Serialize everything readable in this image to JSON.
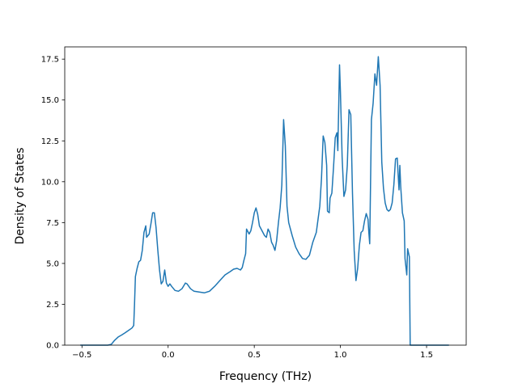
{
  "chart_data": {
    "type": "line",
    "title": "",
    "xlabel": "Frequency (THz)",
    "ylabel": "Density of States",
    "xlim": [
      -0.6,
      1.73
    ],
    "ylim": [
      0,
      18.25
    ],
    "grid": false,
    "x_ticks": [
      -0.5,
      0.0,
      0.5,
      1.0,
      1.5
    ],
    "x_tick_labels": [
      "−0.5",
      "0.0",
      "0.5",
      "1.0",
      "1.5"
    ],
    "y_ticks": [
      0,
      2.5,
      5.0,
      7.5,
      10.0,
      12.5,
      15.0,
      17.5
    ],
    "y_tick_labels": [
      "0.0",
      "2.5",
      "5.0",
      "7.5",
      "10.0",
      "12.5",
      "15.0",
      "17.5"
    ],
    "colors": {
      "line": "#1f77b4",
      "axes": "#000000",
      "background": "#ffffff"
    },
    "series": [
      {
        "points": [
          [
            -0.51,
            0
          ],
          [
            -0.45,
            0
          ],
          [
            -0.4,
            0
          ],
          [
            -0.35,
            0
          ],
          [
            -0.33,
            0.05
          ],
          [
            -0.31,
            0.3
          ],
          [
            -0.29,
            0.5
          ],
          [
            -0.27,
            0.62
          ],
          [
            -0.25,
            0.75
          ],
          [
            -0.23,
            0.9
          ],
          [
            -0.21,
            1.05
          ],
          [
            -0.2,
            1.2
          ],
          [
            -0.195,
            2.5
          ],
          [
            -0.19,
            4.2
          ],
          [
            -0.18,
            4.7
          ],
          [
            -0.17,
            5.1
          ],
          [
            -0.16,
            5.2
          ],
          [
            -0.15,
            5.8
          ],
          [
            -0.14,
            6.9
          ],
          [
            -0.13,
            7.3
          ],
          [
            -0.125,
            6.6
          ],
          [
            -0.11,
            6.8
          ],
          [
            -0.1,
            7.4
          ],
          [
            -0.09,
            8.1
          ],
          [
            -0.08,
            8.1
          ],
          [
            -0.07,
            7.2
          ],
          [
            -0.06,
            5.8
          ],
          [
            -0.05,
            4.6
          ],
          [
            -0.04,
            3.75
          ],
          [
            -0.03,
            3.9
          ],
          [
            -0.02,
            4.6
          ],
          [
            -0.01,
            3.8
          ],
          [
            0.0,
            3.6
          ],
          [
            0.01,
            3.75
          ],
          [
            0.02,
            3.6
          ],
          [
            0.04,
            3.35
          ],
          [
            0.06,
            3.3
          ],
          [
            0.08,
            3.45
          ],
          [
            0.1,
            3.8
          ],
          [
            0.11,
            3.75
          ],
          [
            0.13,
            3.45
          ],
          [
            0.15,
            3.3
          ],
          [
            0.18,
            3.25
          ],
          [
            0.21,
            3.2
          ],
          [
            0.24,
            3.3
          ],
          [
            0.27,
            3.6
          ],
          [
            0.3,
            3.95
          ],
          [
            0.33,
            4.3
          ],
          [
            0.36,
            4.5
          ],
          [
            0.38,
            4.65
          ],
          [
            0.4,
            4.7
          ],
          [
            0.42,
            4.6
          ],
          [
            0.43,
            4.75
          ],
          [
            0.44,
            5.2
          ],
          [
            0.45,
            5.6
          ],
          [
            0.455,
            7.1
          ],
          [
            0.47,
            6.8
          ],
          [
            0.48,
            7.0
          ],
          [
            0.49,
            7.5
          ],
          [
            0.5,
            8.1
          ],
          [
            0.51,
            8.4
          ],
          [
            0.52,
            8.0
          ],
          [
            0.53,
            7.3
          ],
          [
            0.55,
            6.9
          ],
          [
            0.56,
            6.7
          ],
          [
            0.57,
            6.6
          ],
          [
            0.58,
            7.1
          ],
          [
            0.59,
            6.9
          ],
          [
            0.6,
            6.3
          ],
          [
            0.61,
            6.1
          ],
          [
            0.62,
            5.8
          ],
          [
            0.63,
            6.4
          ],
          [
            0.64,
            7.5
          ],
          [
            0.65,
            8.4
          ],
          [
            0.66,
            9.8
          ],
          [
            0.67,
            13.8
          ],
          [
            0.68,
            12.2
          ],
          [
            0.69,
            8.5
          ],
          [
            0.7,
            7.5
          ],
          [
            0.72,
            6.7
          ],
          [
            0.74,
            6.0
          ],
          [
            0.76,
            5.6
          ],
          [
            0.78,
            5.3
          ],
          [
            0.8,
            5.25
          ],
          [
            0.82,
            5.5
          ],
          [
            0.84,
            6.3
          ],
          [
            0.86,
            6.9
          ],
          [
            0.88,
            8.5
          ],
          [
            0.89,
            10.2
          ],
          [
            0.9,
            12.8
          ],
          [
            0.91,
            12.4
          ],
          [
            0.92,
            11.0
          ],
          [
            0.925,
            8.2
          ],
          [
            0.935,
            8.1
          ],
          [
            0.94,
            9.0
          ],
          [
            0.95,
            9.3
          ],
          [
            0.96,
            10.9
          ],
          [
            0.97,
            12.7
          ],
          [
            0.98,
            13.0
          ],
          [
            0.985,
            11.9
          ],
          [
            0.995,
            17.15
          ],
          [
            1.0,
            15.5
          ],
          [
            1.01,
            11.5
          ],
          [
            1.02,
            9.1
          ],
          [
            1.03,
            9.5
          ],
          [
            1.04,
            11.0
          ],
          [
            1.05,
            14.4
          ],
          [
            1.06,
            14.1
          ],
          [
            1.07,
            9.3
          ],
          [
            1.08,
            5.8
          ],
          [
            1.09,
            3.95
          ],
          [
            1.1,
            4.7
          ],
          [
            1.11,
            6.1
          ],
          [
            1.12,
            6.9
          ],
          [
            1.13,
            7.0
          ],
          [
            1.14,
            7.6
          ],
          [
            1.15,
            8.05
          ],
          [
            1.16,
            7.7
          ],
          [
            1.165,
            6.9
          ],
          [
            1.17,
            6.2
          ],
          [
            1.18,
            13.8
          ],
          [
            1.19,
            14.8
          ],
          [
            1.2,
            16.6
          ],
          [
            1.21,
            15.9
          ],
          [
            1.22,
            17.65
          ],
          [
            1.23,
            15.9
          ],
          [
            1.24,
            11.2
          ],
          [
            1.25,
            9.6
          ],
          [
            1.26,
            8.7
          ],
          [
            1.27,
            8.3
          ],
          [
            1.28,
            8.2
          ],
          [
            1.29,
            8.3
          ],
          [
            1.3,
            8.7
          ],
          [
            1.31,
            9.8
          ],
          [
            1.32,
            11.4
          ],
          [
            1.33,
            11.45
          ],
          [
            1.34,
            9.5
          ],
          [
            1.345,
            11.0
          ],
          [
            1.35,
            9.7
          ],
          [
            1.36,
            8.1
          ],
          [
            1.37,
            7.6
          ],
          [
            1.375,
            5.3
          ],
          [
            1.38,
            4.8
          ],
          [
            1.385,
            4.3
          ],
          [
            1.39,
            5.9
          ],
          [
            1.4,
            5.4
          ],
          [
            1.405,
            0
          ],
          [
            1.45,
            0
          ],
          [
            1.55,
            0
          ],
          [
            1.63,
            0
          ]
        ]
      }
    ]
  }
}
